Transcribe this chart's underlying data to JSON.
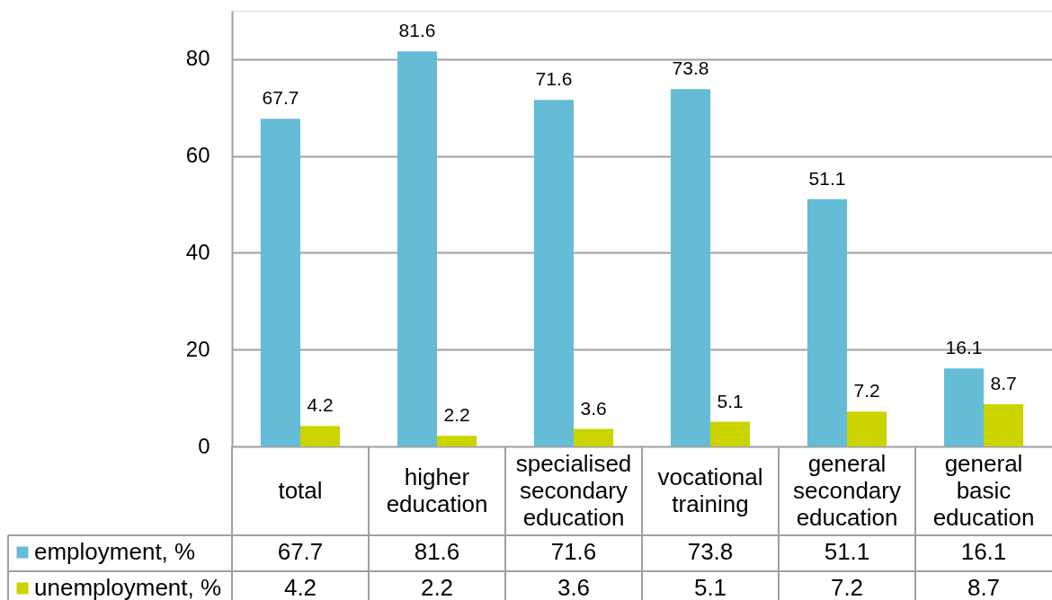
{
  "chart_data": {
    "type": "bar",
    "categories": [
      "total",
      "higher education",
      "specialised secondary education",
      "vocational training",
      "general secondary education",
      "general basic education"
    ],
    "series": [
      {
        "name": "employment, %",
        "color": "#64bcd6",
        "values": [
          67.7,
          81.6,
          71.6,
          73.8,
          51.1,
          16.1
        ]
      },
      {
        "name": "unemployment, %",
        "color": "#ccd400",
        "values": [
          4.2,
          2.2,
          3.6,
          5.1,
          7.2,
          8.7
        ]
      }
    ],
    "ylim": [
      0,
      90
    ],
    "yticks": [
      0,
      20,
      40,
      60,
      80
    ],
    "grid": "y",
    "legend": "bottom left",
    "data_labels": true,
    "annotations": [
      "67.7",
      "81.6",
      "71.6",
      "73.8",
      "51.1",
      "16.1",
      "4.2",
      "2.2",
      "3.6",
      "5.1",
      "7.2",
      "8.7"
    ]
  }
}
